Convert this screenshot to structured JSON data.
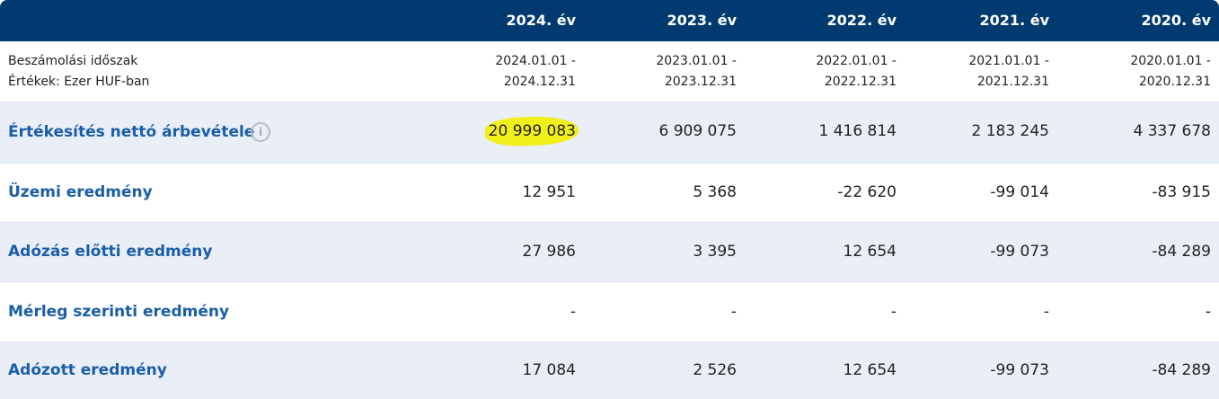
{
  "header": {
    "columns": [
      "2024. év",
      "2023. év",
      "2022. év",
      "2021. év",
      "2020. év"
    ]
  },
  "period": {
    "label": [
      "Beszámolási időszak",
      "Értékek: Ezer HUF-ban"
    ],
    "values": [
      [
        "2024.01.01 -",
        "2024.12.31"
      ],
      [
        "2023.01.01 -",
        "2023.12.31"
      ],
      [
        "2022.01.01 -",
        "2022.12.31"
      ],
      [
        "2021.01.01 -",
        "2021.12.31"
      ],
      [
        "2020.01.01 -",
        "2020.12.31"
      ]
    ]
  },
  "table": {
    "rows": [
      {
        "label": "Értékesítés nettó árbevétele",
        "values": [
          "20 999 083",
          "6 909 075",
          "1 416 814",
          "2 183 245",
          "4 337 678"
        ]
      },
      {
        "label": "Üzemi eredmény",
        "values": [
          "12 951",
          "5 368",
          "-22 620",
          "-99 014",
          "-83 915"
        ]
      },
      {
        "label": "Adózás előtti eredmény",
        "values": [
          "27 986",
          "3 395",
          "12 654",
          "-99 073",
          "-84 289"
        ]
      },
      {
        "label": "Mérleg szerinti eredmény",
        "values": [
          "-",
          "-",
          "-",
          "-",
          "-"
        ]
      },
      {
        "label": "Adózott eredmény",
        "values": [
          "17 084",
          "2 526",
          "12 654",
          "-99 073",
          "-84 289"
        ]
      }
    ]
  }
}
